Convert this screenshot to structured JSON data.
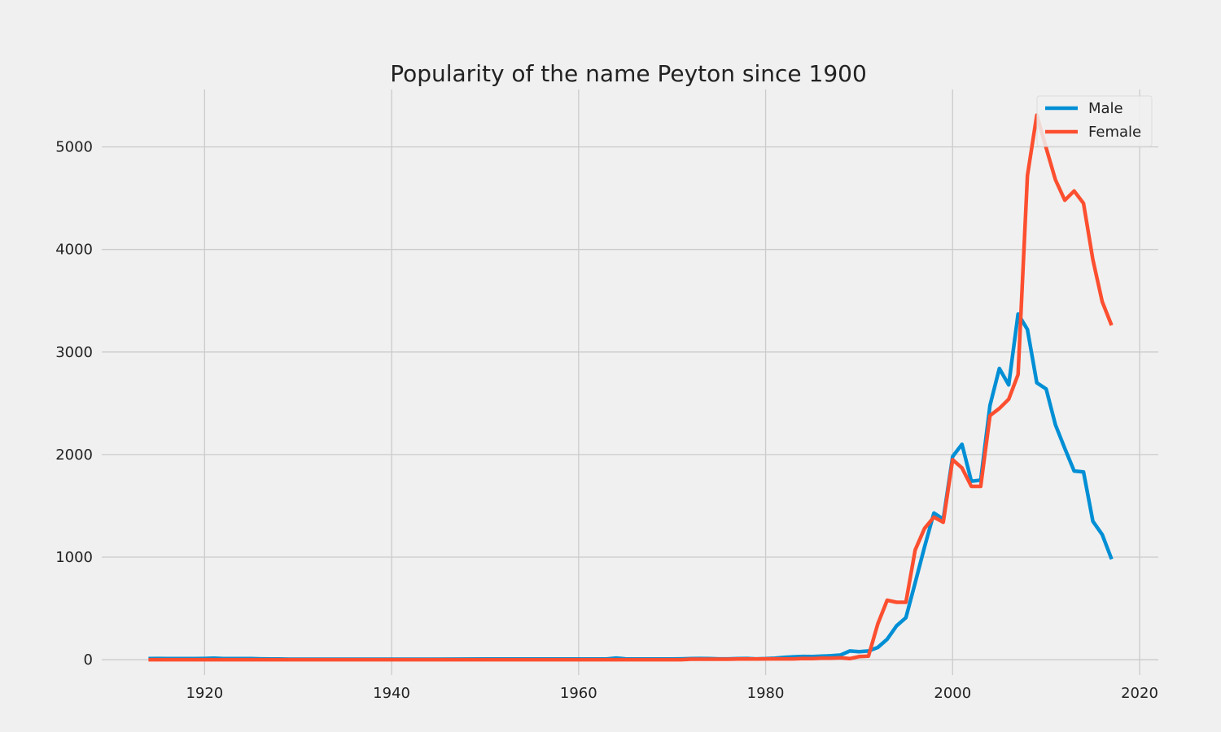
{
  "chart_data": {
    "type": "line",
    "title": "Popularity of the name Peyton since 1900",
    "xlabel": "",
    "ylabel": "",
    "xlim": [
      1909,
      2022
    ],
    "ylim": [
      -150,
      5560
    ],
    "xticks": [
      1920,
      1940,
      1960,
      1980,
      2000,
      2020
    ],
    "yticks": [
      0,
      1000,
      2000,
      3000,
      4000,
      5000
    ],
    "grid": true,
    "legend_position": "top-right",
    "series": [
      {
        "name": "Male",
        "color": "#008fd5",
        "x": [
          1914,
          1915,
          1916,
          1917,
          1918,
          1919,
          1920,
          1921,
          1922,
          1923,
          1924,
          1925,
          1926,
          1927,
          1928,
          1929,
          1930,
          1935,
          1940,
          1945,
          1950,
          1955,
          1960,
          1962,
          1963,
          1964,
          1965,
          1966,
          1967,
          1968,
          1969,
          1970,
          1971,
          1972,
          1973,
          1974,
          1975,
          1976,
          1977,
          1978,
          1979,
          1980,
          1981,
          1982,
          1983,
          1984,
          1985,
          1986,
          1987,
          1988,
          1989,
          1990,
          1991,
          1992,
          1993,
          1994,
          1995,
          1996,
          1997,
          1998,
          1999,
          2000,
          2001,
          2002,
          2003,
          2004,
          2005,
          2006,
          2007,
          2008,
          2009,
          2010,
          2011,
          2012,
          2013,
          2014,
          2015,
          2016,
          2017
        ],
        "y": [
          10,
          12,
          10,
          11,
          10,
          10,
          12,
          14,
          10,
          10,
          11,
          10,
          8,
          6,
          6,
          5,
          5,
          5,
          5,
          5,
          6,
          6,
          7,
          6,
          6,
          16,
          8,
          7,
          6,
          6,
          6,
          6,
          8,
          10,
          12,
          10,
          8,
          8,
          10,
          12,
          8,
          10,
          15,
          22,
          28,
          32,
          30,
          35,
          38,
          45,
          85,
          78,
          85,
          120,
          200,
          330,
          410,
          750,
          1100,
          1430,
          1370,
          1980,
          2100,
          1740,
          1750,
          2480,
          2840,
          2680,
          3370,
          3220,
          2700,
          2640,
          2290,
          2060,
          1840,
          1830,
          1350,
          1220,
          980
        ]
      },
      {
        "name": "Female",
        "color": "#fc4f30",
        "x": [
          1914,
          1915,
          1920,
          1925,
          1930,
          1935,
          1940,
          1945,
          1950,
          1955,
          1960,
          1965,
          1970,
          1971,
          1972,
          1973,
          1974,
          1975,
          1976,
          1977,
          1978,
          1979,
          1980,
          1981,
          1982,
          1983,
          1984,
          1985,
          1986,
          1987,
          1988,
          1989,
          1990,
          1991,
          1992,
          1993,
          1994,
          1995,
          1996,
          1997,
          1998,
          1999,
          2000,
          2001,
          2002,
          2003,
          2004,
          2005,
          2006,
          2007,
          2008,
          2009,
          2010,
          2011,
          2012,
          2013,
          2014,
          2015,
          2016,
          2017
        ],
        "y": [
          0,
          0,
          0,
          0,
          0,
          0,
          0,
          0,
          0,
          0,
          0,
          0,
          0,
          0,
          5,
          5,
          5,
          5,
          5,
          6,
          6,
          7,
          8,
          8,
          8,
          8,
          12,
          10,
          15,
          15,
          18,
          10,
          30,
          35,
          350,
          580,
          560,
          560,
          1070,
          1280,
          1390,
          1340,
          1950,
          1870,
          1690,
          1690,
          2380,
          2450,
          2540,
          2780,
          4720,
          5310,
          4990,
          4680,
          4480,
          4570,
          4450,
          3900,
          3490,
          3260
        ]
      }
    ]
  }
}
